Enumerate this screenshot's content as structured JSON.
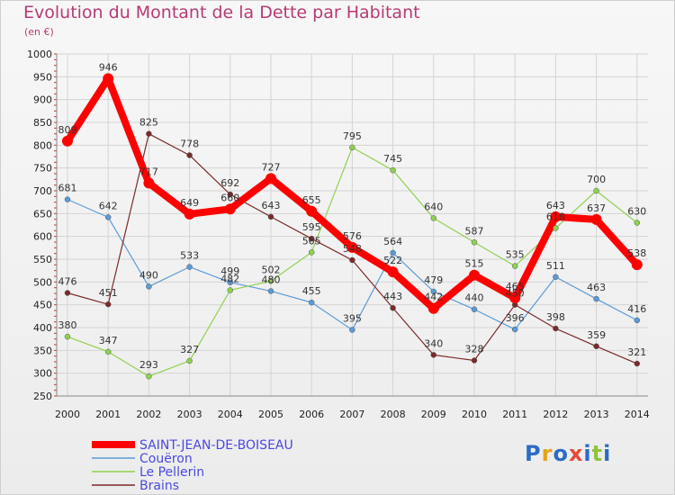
{
  "title": "Evolution du Montant de la Dette par Habitant",
  "subtitle": "(en €)",
  "logo": "Proxiti",
  "chart_data": {
    "type": "line",
    "title": "Evolution du Montant de la Dette par Habitant",
    "ylabel": "(en €)",
    "xlabel": "",
    "ylim": [
      250,
      1000
    ],
    "yticks": [
      250,
      300,
      350,
      400,
      450,
      500,
      550,
      600,
      650,
      700,
      750,
      800,
      850,
      900,
      950,
      1000
    ],
    "grid": true,
    "legend": "bottom-left",
    "categories": [
      "2000",
      "2001",
      "2002",
      "2003",
      "2004",
      "2005",
      "2006",
      "2007",
      "2008",
      "2009",
      "2010",
      "2011",
      "2012",
      "2013",
      "2014"
    ],
    "series": [
      {
        "name": "SAINT-JEAN-DE-BOISEAU",
        "color": "#ff0000",
        "bold": true,
        "values": [
          809,
          946,
          717,
          649,
          660,
          727,
          655,
          576,
          522,
          442,
          515,
          465,
          643,
          637,
          538
        ]
      },
      {
        "name": "Couëron",
        "color": "#5b9bd5",
        "values": [
          681,
          642,
          490,
          533,
          499,
          480,
          455,
          395,
          564,
          479,
          440,
          396,
          511,
          463,
          416
        ]
      },
      {
        "name": "Le Pellerin",
        "color": "#8fd14f",
        "values": [
          380,
          347,
          293,
          327,
          482,
          502,
          565,
          795,
          745,
          640,
          587,
          535,
          618,
          700,
          630
        ]
      },
      {
        "name": "Brains",
        "color": "#7a2a2a",
        "values": [
          476,
          451,
          825,
          778,
          692,
          643,
          595,
          548,
          443,
          340,
          328,
          450,
          398,
          359,
          321
        ]
      }
    ]
  }
}
